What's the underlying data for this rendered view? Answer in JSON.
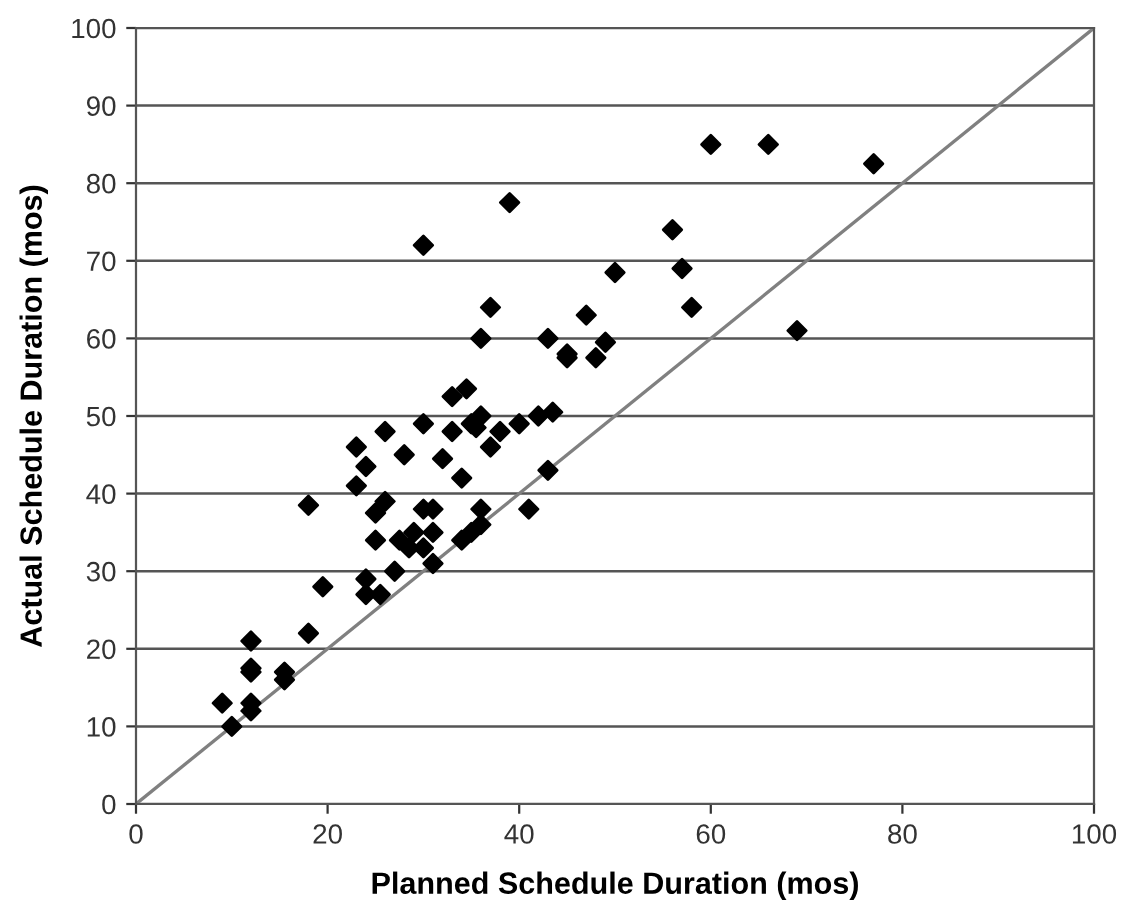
{
  "chart_data": {
    "type": "scatter",
    "xlabel": "Planned Schedule Duration (mos)",
    "ylabel": "Actual Schedule Duration (mos)",
    "xlim": [
      0,
      100
    ],
    "ylim": [
      0,
      100
    ],
    "xticks": [
      0,
      20,
      40,
      60,
      80,
      100
    ],
    "yticks": [
      0,
      10,
      20,
      30,
      40,
      50,
      60,
      70,
      80,
      90,
      100
    ],
    "grid": "y",
    "marker": "diamond",
    "series": [
      {
        "color": "#000000",
        "x": [
          9,
          10,
          12,
          12,
          12,
          12,
          12,
          15.5,
          15.5,
          18,
          18,
          19.5,
          23,
          23,
          24,
          24,
          24,
          25,
          25,
          25.5,
          26,
          26,
          27,
          27.5,
          28,
          28.5,
          29,
          30,
          30,
          30,
          30,
          31,
          31,
          31,
          32,
          33,
          33,
          34,
          34,
          34.5,
          35,
          35,
          35.5,
          36,
          36,
          36,
          36,
          37,
          37,
          38,
          39,
          40,
          41,
          42,
          43,
          43,
          43.5,
          45,
          45,
          47,
          48,
          49,
          50,
          56,
          57,
          58,
          60,
          66,
          69,
          77
        ],
        "values": [
          13,
          10,
          12,
          13,
          17,
          17.5,
          21,
          16,
          17,
          22,
          38.5,
          28,
          41,
          46,
          27,
          29,
          43.5,
          34,
          37.5,
          27,
          39,
          48,
          30,
          34,
          45,
          33,
          35,
          49,
          38,
          33,
          72,
          31,
          35,
          38,
          44.5,
          48,
          52.5,
          42,
          34,
          53.5,
          35,
          49,
          48.5,
          36,
          38,
          50,
          60,
          46,
          64,
          48,
          77.5,
          49,
          38,
          50,
          60,
          43,
          50.5,
          58,
          57.5,
          63,
          57.5,
          59.5,
          68.5,
          74,
          69,
          64,
          85,
          85,
          61,
          82.5
        ]
      },
      {
        "type": "line",
        "color": "#808080",
        "x": [
          0,
          100
        ],
        "values": [
          0,
          100
        ],
        "marker": "none"
      }
    ]
  }
}
